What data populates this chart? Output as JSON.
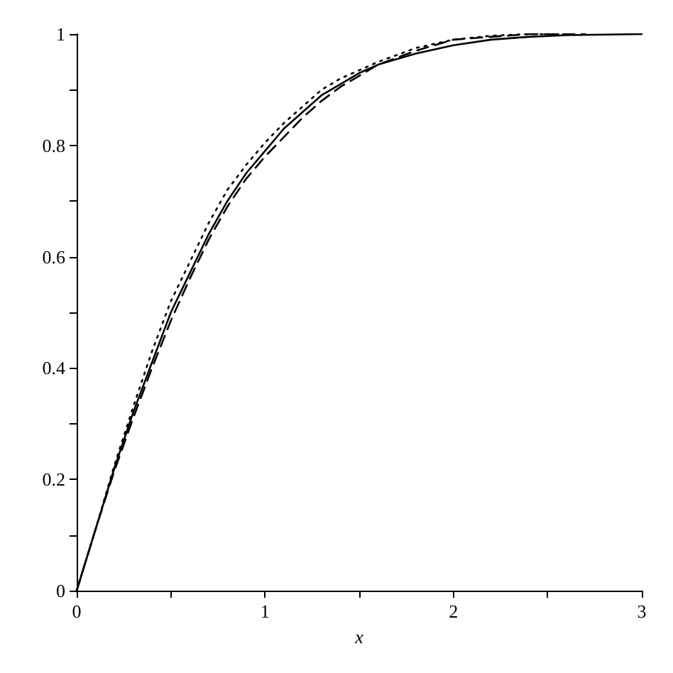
{
  "chart_data": {
    "type": "line",
    "xlabel": "x",
    "xlim": [
      0,
      3
    ],
    "ylim": [
      0,
      1
    ],
    "xticks": [
      0,
      {
        "value": 0.5,
        "label": null
      },
      1,
      {
        "value": 1.5,
        "label": null
      },
      2,
      {
        "value": 2.5,
        "label": null
      },
      3
    ],
    "yticks": [
      0,
      {
        "value": 0.1,
        "label": null
      },
      0.2,
      {
        "value": 0.3,
        "label": null
      },
      0.4,
      {
        "value": 0.5,
        "label": null
      },
      0.6,
      {
        "value": 0.7,
        "label": null
      },
      0.8,
      {
        "value": 0.9,
        "label": null
      },
      1
    ],
    "grid": false,
    "marker": "none",
    "series": [
      {
        "color": "#000000",
        "line_style": "solid",
        "x": [
          0,
          0.1,
          0.2,
          0.3,
          0.4,
          0.5,
          0.6,
          0.7,
          0.8,
          0.9,
          1,
          1.1,
          1.2,
          1.3,
          1.4,
          1.5,
          1.6,
          1.8,
          2,
          2.2,
          2.4,
          2.6,
          2.8,
          3
        ],
        "values": [
          0,
          0.11,
          0.22,
          0.32,
          0.41,
          0.5,
          0.57,
          0.64,
          0.7,
          0.75,
          0.79,
          0.83,
          0.86,
          0.89,
          0.91,
          0.93,
          0.945,
          0.965,
          0.98,
          0.99,
          0.995,
          0.998,
          0.999,
          1
        ]
      },
      {
        "color": "#000000",
        "line_style": "dotted",
        "x": [
          0,
          0.1,
          0.2,
          0.3,
          0.4,
          0.5,
          0.6,
          0.7,
          0.8,
          0.9,
          1,
          1.1,
          1.2,
          1.3,
          1.4,
          1.5,
          1.6,
          1.8,
          2,
          2.2,
          2.4,
          2.6
        ],
        "values": [
          0,
          0.11,
          0.225,
          0.33,
          0.43,
          0.52,
          0.59,
          0.66,
          0.72,
          0.765,
          0.805,
          0.84,
          0.87,
          0.9,
          0.92,
          0.935,
          0.95,
          0.975,
          0.99,
          0.997,
          1,
          1
        ]
      },
      {
        "color": "#000000",
        "line_style": "dashed",
        "x": [
          0,
          0.1,
          0.2,
          0.3,
          0.4,
          0.5,
          0.6,
          0.7,
          0.8,
          0.9,
          1,
          1.1,
          1.2,
          1.3,
          1.4,
          1.5,
          1.6,
          1.8,
          2,
          2.2,
          2.4,
          2.7
        ],
        "values": [
          0,
          0.11,
          0.215,
          0.31,
          0.4,
          0.485,
          0.56,
          0.63,
          0.69,
          0.74,
          0.78,
          0.815,
          0.85,
          0.88,
          0.905,
          0.925,
          0.945,
          0.97,
          0.99,
          0.995,
          1,
          1
        ]
      }
    ]
  }
}
